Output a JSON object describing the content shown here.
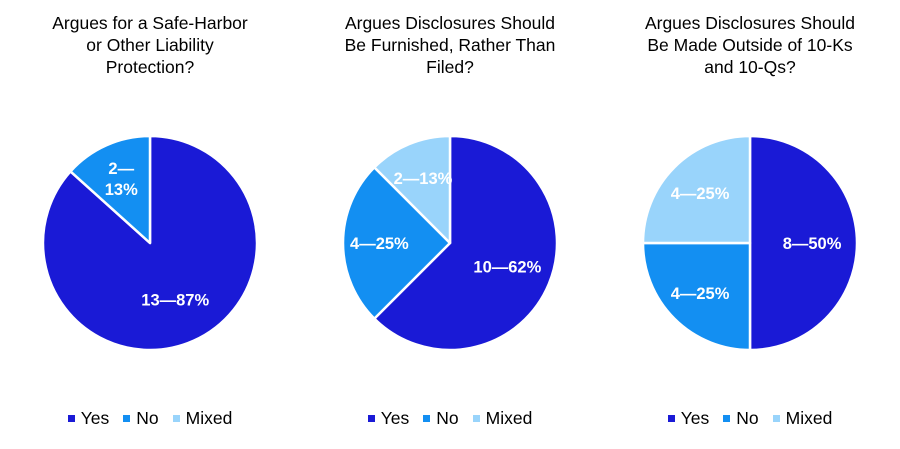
{
  "colors": {
    "Yes": "#1a1ad6",
    "No": "#138ff2",
    "Mixed": "#99d4fb"
  },
  "chart_data": [
    {
      "type": "pie",
      "title": "Argues for a Safe-Harbor or Other Liability Protection?",
      "title_lines": [
        "Argues for a Safe-Harbor",
        "or Other Liability",
        "Protection?"
      ],
      "categories": [
        "Yes",
        "No",
        "Mixed"
      ],
      "values": [
        13,
        2,
        0
      ],
      "percents": [
        87,
        13,
        0
      ],
      "labels": [
        "13—87%",
        "2—\n13%",
        ""
      ],
      "legend": [
        "Yes",
        "No",
        "Mixed"
      ],
      "legend_position": "bottom"
    },
    {
      "type": "pie",
      "title": "Argues Disclosures Should Be Furnished, Rather Than Filed?",
      "title_lines": [
        "Argues Disclosures Should",
        "Be Furnished, Rather Than",
        "Filed?"
      ],
      "categories": [
        "Yes",
        "No",
        "Mixed"
      ],
      "values": [
        10,
        4,
        2
      ],
      "percents": [
        62,
        25,
        13
      ],
      "labels": [
        "10—62%",
        "4—25%",
        "2—13%"
      ],
      "legend": [
        "Yes",
        "No",
        "Mixed"
      ],
      "legend_position": "bottom"
    },
    {
      "type": "pie",
      "title": "Argues Disclosures Should Be Made Outside of 10-Ks and 10-Qs?",
      "title_lines": [
        "Argues Disclosures Should",
        "Be Made Outside of 10-Ks",
        "and 10-Qs?"
      ],
      "categories": [
        "Yes",
        "No",
        "Mixed"
      ],
      "values": [
        8,
        4,
        4
      ],
      "percents": [
        50,
        25,
        25
      ],
      "labels": [
        "8—50%",
        "4—25%",
        "4—25%"
      ],
      "legend": [
        "Yes",
        "No",
        "Mixed"
      ],
      "legend_position": "bottom"
    }
  ]
}
